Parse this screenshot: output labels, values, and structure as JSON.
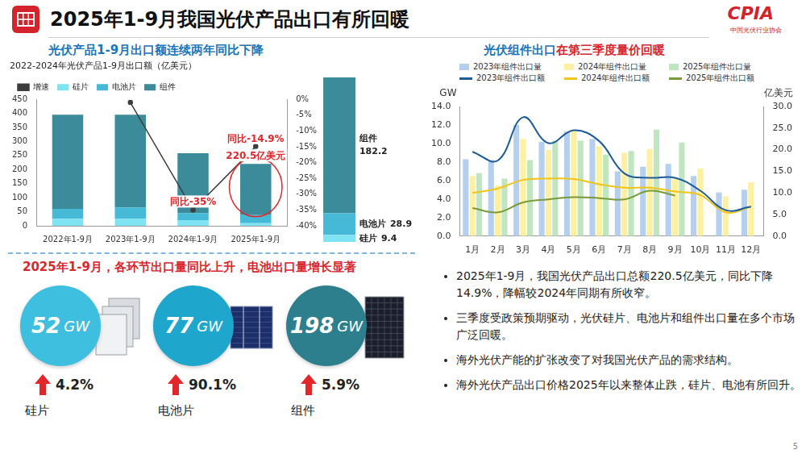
{
  "header": {
    "title": "2025年1-9月我国光伏产品出口有所回暖",
    "logo": "CPIA",
    "logo_sub": "中国光伏行业协会"
  },
  "chart_data": [
    {
      "type": "bar",
      "panel_title": "光伏产品1-9月出口额连续两年同比下降",
      "title": "2022-2024年光伏产品1-9月出口额（亿美元）",
      "categories": [
        "2022年1-9月",
        "2023年1-9月",
        "2024年1-9月",
        "2025年1-9月"
      ],
      "series": [
        {
          "name": "硅片",
          "color": "#7fe3f3",
          "values": [
            25,
            25,
            20,
            9.4
          ]
        },
        {
          "name": "电池片",
          "color": "#45b9d6",
          "values": [
            35,
            40,
            25,
            28.9
          ]
        },
        {
          "name": "组件",
          "color": "#3b8b9b",
          "values": [
            335,
            330,
            213,
            182.2
          ]
        },
        {
          "name": "增速",
          "type": "line",
          "axis": "y2",
          "color": "#3d3d3d",
          "values": [
            null,
            -1,
            -35,
            -14.9
          ]
        }
      ],
      "stacked": true,
      "ylim": [
        0,
        450
      ],
      "yticks": [
        0,
        50,
        100,
        150,
        200,
        250,
        300,
        350,
        400,
        450
      ],
      "y2lim": [
        -40,
        0
      ],
      "y2ticks": [
        {
          "value": 0,
          "label": "0%"
        },
        {
          "value": -5,
          "label": "-5%"
        },
        {
          "value": -10,
          "label": "-10%"
        },
        {
          "value": -15,
          "label": "-15%"
        },
        {
          "value": -20,
          "label": "-20%"
        },
        {
          "value": -25,
          "label": "-25%"
        },
        {
          "value": -30,
          "label": "-30%"
        },
        {
          "value": -35,
          "label": "-35%"
        },
        {
          "value": -40,
          "label": "-40%"
        }
      ],
      "grid": false,
      "legend": "top",
      "annotations": [
        {
          "text": "同比-14.9%",
          "category": "2025年1-9月",
          "series": "增速",
          "color": "#e3262a"
        },
        {
          "text": "220.5亿美元",
          "category": "2025年1-9月",
          "series": "组件",
          "color": "#e3262a"
        },
        {
          "text": "同比-35%",
          "category": "2024年1-9月",
          "series": "增速",
          "color": "#e3262a"
        }
      ]
    },
    {
      "type": "bar",
      "panel_title": [
        "光伏组件出口",
        "在第三季度量价回暖"
      ],
      "categories": [
        "1月",
        "2月",
        "3月",
        "4月",
        "5月",
        "6月",
        "7月",
        "8月",
        "9月",
        "10月",
        "11月",
        "12月"
      ],
      "y_label": "GW",
      "y2_label": "亿美元",
      "series": [
        {
          "name": "2023年组件出口量",
          "color": "#b4d0ee",
          "values": [
            8.3,
            8.2,
            12.0,
            10.2,
            11.3,
            10.5,
            7.0,
            7.5,
            7.8,
            6.5,
            4.7,
            5.0
          ]
        },
        {
          "name": "2024年组件出口量",
          "color": "#fdf0a0",
          "values": [
            6.5,
            5.5,
            10.5,
            9.3,
            11.5,
            9.7,
            9.0,
            9.4,
            6.2,
            7.3,
            4.3,
            5.8
          ]
        },
        {
          "name": "2025年组件出口量",
          "color": "#bfe6bf",
          "values": [
            6.8,
            6.2,
            8.2,
            10.3,
            10.3,
            8.8,
            9.2,
            11.5,
            10.1,
            null,
            null,
            null
          ]
        },
        {
          "name": "2023年组件出口额",
          "type": "line",
          "axis": "y2",
          "color": "#1d5c99",
          "values": [
            19.5,
            17.5,
            27.5,
            21.5,
            24.5,
            22.0,
            14.5,
            13.5,
            13.5,
            10.5,
            6.0,
            6.8
          ]
        },
        {
          "name": "2024年组件出口额",
          "type": "line",
          "axis": "y2",
          "color": "#f0c419",
          "values": [
            10.0,
            11.0,
            13.0,
            13.3,
            13.2,
            12.0,
            11.2,
            11.2,
            10.3,
            9.5,
            5.5,
            6.8
          ]
        },
        {
          "name": "2025年组件出口额",
          "type": "line",
          "axis": "y2",
          "color": "#7a9a3a",
          "values": [
            6.5,
            5.5,
            7.8,
            8.5,
            9.0,
            8.8,
            8.5,
            10.5,
            9.4,
            null,
            null,
            null
          ]
        }
      ],
      "ylim": [
        0,
        14
      ],
      "yticks": [
        {
          "value": 0,
          "label": "0.0"
        },
        {
          "value": 2,
          "label": "2.0"
        },
        {
          "value": 4,
          "label": "4.0"
        },
        {
          "value": 6,
          "label": "6.0"
        },
        {
          "value": 8,
          "label": "8.0"
        },
        {
          "value": 10,
          "label": "10.0"
        },
        {
          "value": 12,
          "label": "12.0"
        },
        {
          "value": 14,
          "label": "14.0"
        }
      ],
      "y2lim": [
        0,
        30
      ],
      "y2ticks": [
        {
          "value": 0,
          "label": "0.0"
        },
        {
          "value": 5,
          "label": "5.0"
        },
        {
          "value": 10,
          "label": "10.0"
        },
        {
          "value": 15,
          "label": "15.0"
        },
        {
          "value": 20,
          "label": "20.0"
        },
        {
          "value": 25,
          "label": "25.0"
        },
        {
          "value": 30,
          "label": "30.0"
        }
      ],
      "grid": false,
      "legend": "top"
    },
    {
      "type": "bar",
      "categories": [
        null
      ],
      "series": [
        {
          "name": "硅片",
          "color": "#7fe3f3",
          "values": [
            9.4
          ]
        },
        {
          "name": "电池片",
          "color": "#45b9d6",
          "values": [
            28.9
          ]
        },
        {
          "name": "组件",
          "color": "#3b8b9b",
          "values": [
            182.2
          ]
        }
      ],
      "stacked": true,
      "ylim": [
        0,
        220.5
      ],
      "tick_labels": false,
      "data_labels": true,
      "grid": false
    }
  ],
  "volume_panel": {
    "title": "2025年1-9月，各环节出口量同比上升，电池出口量增长显著",
    "items": [
      {
        "name": "硅片",
        "volume": 52,
        "unit": "GW",
        "growth": "4.2%",
        "color": "#3fbfe0"
      },
      {
        "name": "电池片",
        "volume": 77,
        "unit": "GW",
        "growth": "90.1%",
        "color": "#1fa6cc"
      },
      {
        "name": "组件",
        "volume": 198,
        "unit": "GW",
        "growth": "5.9%",
        "color": "#2e7f8e"
      }
    ]
  },
  "bullets": [
    "2025年1-9月，我国光伏产品出口总额220.5亿美元，同比下降14.9%，降幅较2024年同期有所收窄。",
    "三季度受政策预期驱动，光伏硅片、电池片和组件出口量在多个市场广泛回暖。",
    "海外光伏产能的扩张改变了对我国光伏产品的需求结构。",
    "海外光伏产品出口价格2025年以来整体止跌，硅片、电池有所回升。"
  ],
  "page_number": "5"
}
